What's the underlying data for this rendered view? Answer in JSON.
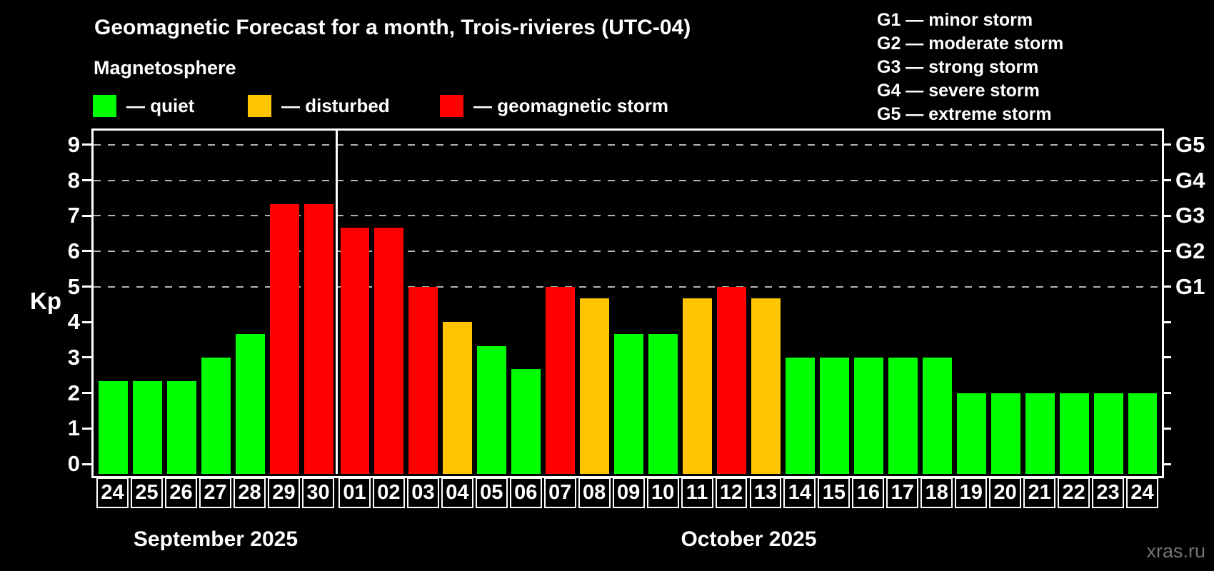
{
  "title": "Geomagnetic Forecast for a month, Trois-rivieres (UTC-04)",
  "subtitle": "Magnetosphere",
  "legend": [
    {
      "key": "quiet",
      "label": "— quiet",
      "color": "#00ff00"
    },
    {
      "key": "disturbed",
      "label": "— disturbed",
      "color": "#ffc400"
    },
    {
      "key": "storm",
      "label": "— geomagnetic storm",
      "color": "#ff0000"
    }
  ],
  "g_scale_legend": [
    "G1 — minor storm",
    "G2 — moderate storm",
    "G3 — strong storm",
    "G4 — severe storm",
    "G5 — extreme storm"
  ],
  "y_axis_label": "Kp",
  "watermark": "xras.ru",
  "colors": {
    "quiet": "#00ff00",
    "disturbed": "#ffc400",
    "storm": "#ff0000",
    "background": "#000000",
    "axis": "#ffffff",
    "gridline": "#b4b4b4",
    "watermark": "#757575"
  },
  "chart_data": {
    "type": "bar",
    "title": "Geomagnetic Forecast for a month, Trois-rivieres (UTC-04)",
    "ylabel": "Kp",
    "ylim": [
      0,
      9
    ],
    "y_ticks": [
      0,
      1,
      2,
      3,
      4,
      5,
      6,
      7,
      8,
      9
    ],
    "gridlines_at_kp": [
      5,
      6,
      7,
      8,
      9
    ],
    "grid_style": "dashed horizontal lines at G-storm levels only",
    "right_axis_labels": [
      {
        "kp": 5,
        "label": "G1"
      },
      {
        "kp": 6,
        "label": "G2"
      },
      {
        "kp": 7,
        "label": "G3"
      },
      {
        "kp": 8,
        "label": "G4"
      },
      {
        "kp": 9,
        "label": "G5"
      }
    ],
    "legend_position": "top-left",
    "months": [
      {
        "label": "September 2025",
        "bars": [
          {
            "day": "24",
            "kp": 2.33,
            "status": "quiet"
          },
          {
            "day": "25",
            "kp": 2.33,
            "status": "quiet"
          },
          {
            "day": "26",
            "kp": 2.33,
            "status": "quiet"
          },
          {
            "day": "27",
            "kp": 3.0,
            "status": "quiet"
          },
          {
            "day": "28",
            "kp": 3.67,
            "status": "quiet"
          },
          {
            "day": "29",
            "kp": 7.33,
            "status": "storm"
          },
          {
            "day": "30",
            "kp": 7.33,
            "status": "storm"
          }
        ]
      },
      {
        "label": "October 2025",
        "bars": [
          {
            "day": "01",
            "kp": 6.67,
            "status": "storm"
          },
          {
            "day": "02",
            "kp": 6.67,
            "status": "storm"
          },
          {
            "day": "03",
            "kp": 5.0,
            "status": "storm"
          },
          {
            "day": "04",
            "kp": 4.0,
            "status": "disturbed"
          },
          {
            "day": "05",
            "kp": 3.33,
            "status": "quiet"
          },
          {
            "day": "06",
            "kp": 2.67,
            "status": "quiet"
          },
          {
            "day": "07",
            "kp": 5.0,
            "status": "storm"
          },
          {
            "day": "08",
            "kp": 4.67,
            "status": "disturbed"
          },
          {
            "day": "09",
            "kp": 3.67,
            "status": "quiet"
          },
          {
            "day": "10",
            "kp": 3.67,
            "status": "quiet"
          },
          {
            "day": "11",
            "kp": 4.67,
            "status": "disturbed"
          },
          {
            "day": "12",
            "kp": 5.0,
            "status": "storm"
          },
          {
            "day": "13",
            "kp": 4.67,
            "status": "disturbed"
          },
          {
            "day": "14",
            "kp": 3.0,
            "status": "quiet"
          },
          {
            "day": "15",
            "kp": 3.0,
            "status": "quiet"
          },
          {
            "day": "16",
            "kp": 3.0,
            "status": "quiet"
          },
          {
            "day": "17",
            "kp": 3.0,
            "status": "quiet"
          },
          {
            "day": "18",
            "kp": 3.0,
            "status": "quiet"
          },
          {
            "day": "19",
            "kp": 2.0,
            "status": "quiet"
          },
          {
            "day": "20",
            "kp": 2.0,
            "status": "quiet"
          },
          {
            "day": "21",
            "kp": 2.0,
            "status": "quiet"
          },
          {
            "day": "22",
            "kp": 2.0,
            "status": "quiet"
          },
          {
            "day": "23",
            "kp": 2.0,
            "status": "quiet"
          },
          {
            "day": "24",
            "kp": 2.0,
            "status": "quiet"
          }
        ]
      }
    ]
  }
}
